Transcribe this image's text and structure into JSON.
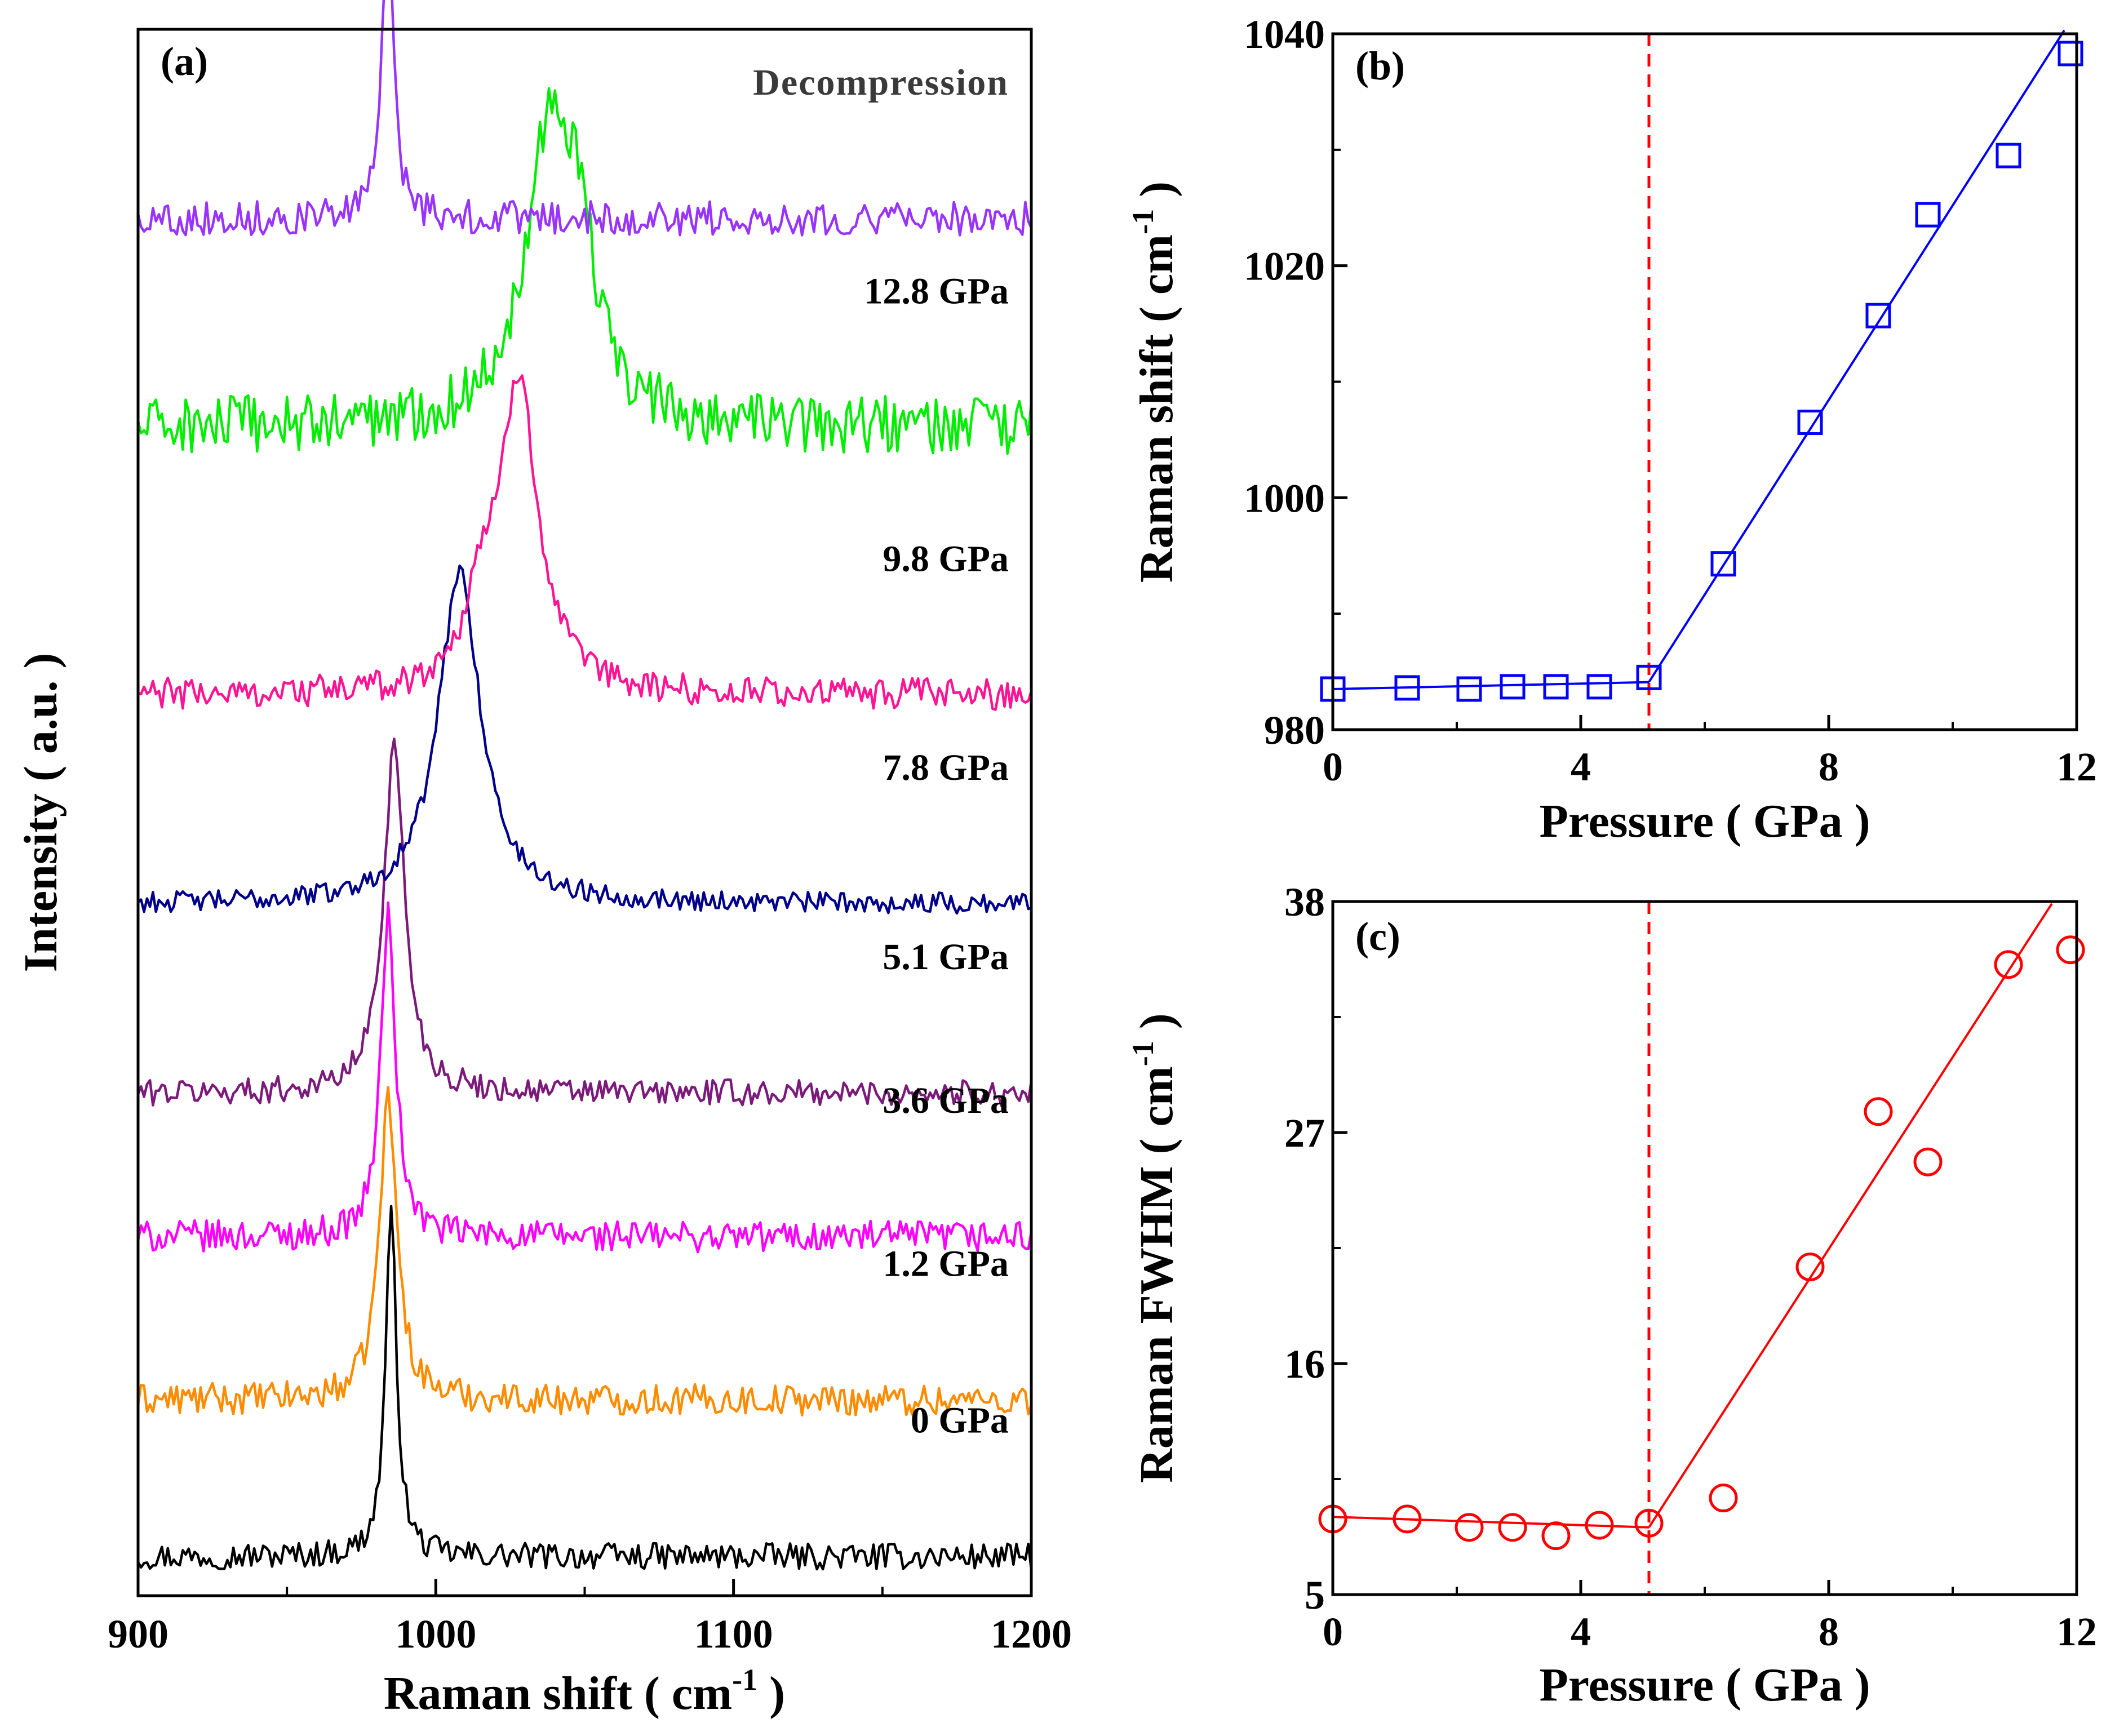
{
  "chart_data": [
    {
      "panel": "(a)",
      "type": "line",
      "xlabel": "Raman shift ( cm",
      "xlabel_sup": "-1",
      "xlabel_tail": " )",
      "ylabel": "Intensity ( a.u. )",
      "xlim": [
        900,
        1200
      ],
      "xticks": [
        "900",
        "1000",
        "1100",
        "1200"
      ],
      "yticks_shown": false,
      "grid": false,
      "series": [
        {
          "name": "0 GPa",
          "color": "#000000",
          "baseline": 0.3,
          "noise": 0.1,
          "peaks": [
            [
              985,
              2.6,
              2.3
            ]
          ]
        },
        {
          "name": "1.2 GPa",
          "color": "#ff8c00",
          "baseline": 1.5,
          "noise": 0.12,
          "peaks": [
            [
              984,
              2.3,
              3.6
            ]
          ]
        },
        {
          "name": "3.6 GPa",
          "color": "#ff00ff",
          "baseline": 2.75,
          "noise": 0.12,
          "peaks": [
            [
              984,
              2.45,
              3.0
            ]
          ]
        },
        {
          "name": "5.1 GPa",
          "color": "#7b1a7b",
          "baseline": 3.85,
          "noise": 0.1,
          "peaks": [
            [
              986,
              2.65,
              4.3
            ]
          ]
        },
        {
          "name": "7.8 GPa",
          "color": "#00008b",
          "baseline": 5.3,
          "noise": 0.08,
          "peaks": [
            [
              1008,
              2.55,
              8.5
            ]
          ]
        },
        {
          "name": "9.8 GPa",
          "color": "#ff1493",
          "baseline": 6.9,
          "noise": 0.12,
          "peaks": [
            [
              1028,
              2.4,
              7.5
            ],
            [
              1015,
              0.6,
              6.0
            ]
          ]
        },
        {
          "name": "12.8 GPa",
          "color": "#00ee00",
          "baseline": 8.95,
          "noise": 0.22,
          "peaks": [
            [
              1038,
              2.2,
              10.0
            ],
            [
              1048,
              1.0,
              6.0
            ]
          ]
        },
        {
          "name": "Decompression",
          "color": "#9933ff",
          "baseline": 10.55,
          "noise": 0.13,
          "peaks": [
            [
              984,
              2.4,
              2.2
            ]
          ]
        }
      ],
      "labels": [
        "Decompression",
        "12.8 GPa",
        "9.8 GPa",
        "7.8 GPa",
        "5.1 GPa",
        "3.6 GPa",
        "1.2 GPa",
        "0 GPa"
      ]
    },
    {
      "panel": "(b)",
      "type": "scatter",
      "xlabel": "Pressure ( GPa )",
      "ylabel": "Raman shift ( cm",
      "ylabel_sup": "-1",
      "ylabel_tail": " )",
      "xlim": [
        0,
        12
      ],
      "ylim": [
        980,
        1040
      ],
      "xticks": [
        "0",
        "4",
        "8",
        "12"
      ],
      "yticks": [
        "980",
        "1000",
        "1020",
        "1040"
      ],
      "marker": "open-square",
      "color": "#0000ff",
      "points": {
        "x": [
          0,
          1.2,
          2.2,
          2.9,
          3.6,
          4.3,
          5.1,
          6.3,
          7.7,
          8.8,
          9.6,
          10.9,
          11.9
        ],
        "y": [
          983.5,
          983.6,
          983.5,
          983.7,
          983.7,
          983.7,
          984.5,
          994.3,
          1006.5,
          1015.7,
          1024.4,
          1029.5,
          1038.3
        ]
      },
      "fits": [
        {
          "x": [
            0,
            5.1
          ],
          "y": [
            983.5,
            984.1
          ]
        },
        {
          "x": [
            5.1,
            11.8
          ],
          "y": [
            984.1,
            1040.3
          ]
        }
      ],
      "reference_line": {
        "x": 5.1,
        "color": "#ff0000",
        "style": "dashed"
      }
    },
    {
      "panel": "(c)",
      "type": "scatter",
      "xlabel": "Pressure ( GPa )",
      "ylabel": "Raman FWHM ( cm",
      "ylabel_sup": "-1",
      "ylabel_tail": " )",
      "xlim": [
        0,
        12
      ],
      "ylim": [
        5,
        38
      ],
      "xticks": [
        "0",
        "4",
        "8",
        "12"
      ],
      "yticks": [
        "5",
        "16",
        "27",
        "38"
      ],
      "marker": "open-circle",
      "color": "#ff0000",
      "points": {
        "x": [
          0,
          1.2,
          2.2,
          2.9,
          3.6,
          4.3,
          5.1,
          6.3,
          7.7,
          8.8,
          9.6,
          10.9,
          11.9
        ],
        "y": [
          8.6,
          8.6,
          8.2,
          8.2,
          7.8,
          8.3,
          8.4,
          9.6,
          20.6,
          28.0,
          25.6,
          35.0,
          35.7
        ]
      },
      "fits": [
        {
          "x": [
            0,
            5.1
          ],
          "y": [
            8.7,
            8.2
          ]
        },
        {
          "x": [
            5.1,
            11.6
          ],
          "y": [
            8.2,
            37.9
          ]
        }
      ],
      "reference_line": {
        "x": 5.1,
        "color": "#ff0000",
        "style": "dashed"
      }
    }
  ]
}
